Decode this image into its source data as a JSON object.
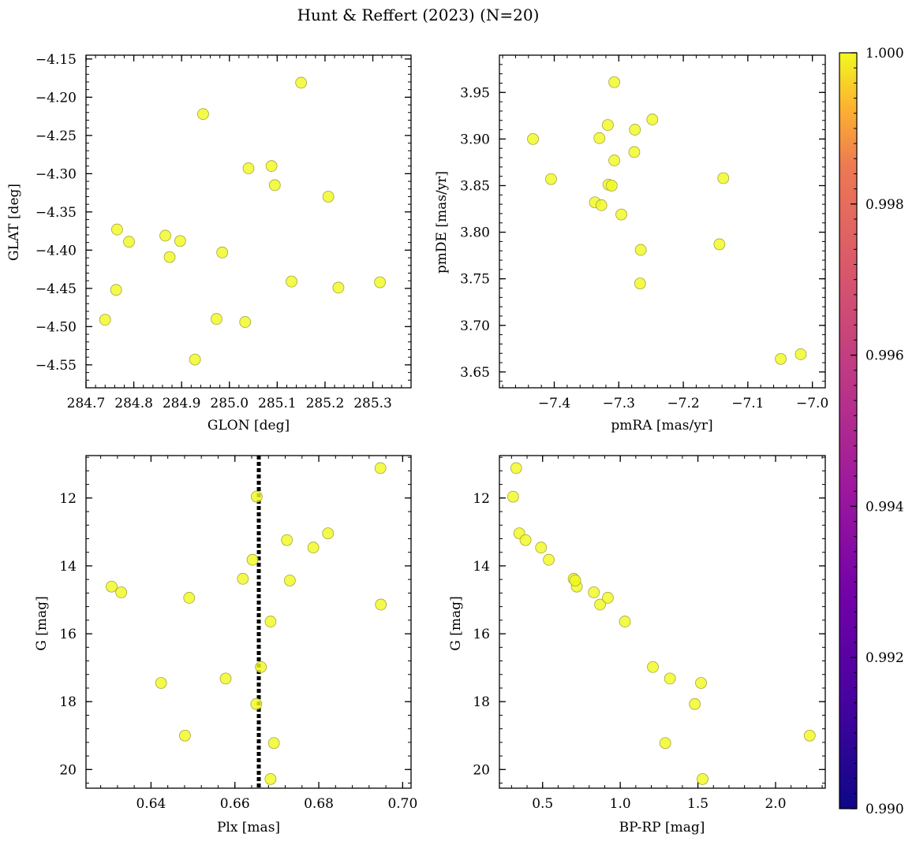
{
  "chart_data": {
    "title": "Hunt & Reffert (2023) (N=20)",
    "colorbar": {
      "ticks": [
        "0.990",
        "0.992",
        "0.994",
        "0.996",
        "0.998",
        "1.000"
      ],
      "range": [
        0.99,
        1.0
      ],
      "colormap": "plasma"
    },
    "point_value": 1.0,
    "point_color": "#f0f921",
    "point_edge": "#a5a53c",
    "refline_color": "#000000",
    "panels": [
      {
        "id": "glon-glat",
        "type": "scatter",
        "xlabel": "GLON [deg]",
        "ylabel": "GLAT [deg]",
        "xlim": [
          284.7,
          285.38
        ],
        "ylim": [
          -4.58,
          -4.145
        ],
        "xticks": [
          284.7,
          284.8,
          284.9,
          285.0,
          285.1,
          285.2,
          285.3
        ],
        "xticklabels": [
          "284.7",
          "284.8",
          "284.9",
          "285.0",
          "285.1",
          "285.2",
          "285.3"
        ],
        "yticks": [
          -4.15,
          -4.2,
          -4.25,
          -4.3,
          -4.35,
          -4.4,
          -4.45,
          -4.5,
          -4.55
        ],
        "yticklabels": [
          "−4.15",
          "−4.20",
          "−4.25",
          "−4.30",
          "−4.35",
          "−4.40",
          "−4.45",
          "−4.50",
          "−4.55"
        ],
        "x": [
          285.15,
          284.945,
          285.04,
          285.088,
          285.095,
          285.207,
          284.765,
          284.79,
          284.866,
          284.897,
          284.875,
          284.985,
          284.763,
          285.13,
          285.228,
          285.315,
          284.74,
          284.973,
          285.033,
          284.928
        ],
        "y": [
          -4.181,
          -4.222,
          -4.293,
          -4.29,
          -4.315,
          -4.33,
          -4.373,
          -4.389,
          -4.381,
          -4.388,
          -4.409,
          -4.403,
          -4.452,
          -4.441,
          -4.449,
          -4.442,
          -4.491,
          -4.49,
          -4.494,
          -4.543
        ]
      },
      {
        "id": "pmra-pmde",
        "type": "scatter",
        "xlabel": "pmRA [mas/yr]",
        "ylabel": "pmDE [mas/yr]",
        "xlim": [
          -7.485,
          -6.98
        ],
        "ylim": [
          3.633,
          3.99
        ],
        "xticks": [
          -7.4,
          -7.3,
          -7.2,
          -7.1,
          -7.0
        ],
        "xticklabels": [
          "−7.4",
          "−7.3",
          "−7.2",
          "−7.1",
          "−7.0"
        ],
        "yticks": [
          3.65,
          3.7,
          3.75,
          3.8,
          3.85,
          3.9,
          3.95
        ],
        "yticklabels": [
          "3.65",
          "3.70",
          "3.75",
          "3.80",
          "3.85",
          "3.90",
          "3.95"
        ],
        "x": [
          -7.307,
          -7.433,
          -7.405,
          -7.33,
          -7.317,
          -7.275,
          -7.248,
          -7.307,
          -7.276,
          -7.316,
          -7.311,
          -7.337,
          -7.327,
          -7.296,
          -7.138,
          -7.266,
          -7.144,
          -7.267,
          -7.049,
          -7.018
        ],
        "y": [
          3.961,
          3.9,
          3.857,
          3.901,
          3.915,
          3.91,
          3.921,
          3.877,
          3.886,
          3.851,
          3.85,
          3.832,
          3.829,
          3.819,
          3.858,
          3.781,
          3.787,
          3.745,
          3.664,
          3.669
        ]
      },
      {
        "id": "plx-g",
        "type": "scatter",
        "xlabel": "Plx [mas]",
        "ylabel": "G [mag]",
        "xlim": [
          0.6245,
          0.702
        ],
        "ylim": [
          20.55,
          10.75
        ],
        "xticks": [
          0.64,
          0.66,
          0.68,
          0.7
        ],
        "xticklabels": [
          "0.64",
          "0.66",
          "0.68",
          "0.70"
        ],
        "yticks": [
          12,
          14,
          16,
          18,
          20
        ],
        "yticklabels": [
          "12",
          "14",
          "16",
          "18",
          "20"
        ],
        "reference_x": 0.6657,
        "x": [
          0.6947,
          0.6652,
          0.6822,
          0.6724,
          0.6787,
          0.6642,
          0.6619,
          0.6731,
          0.6306,
          0.6329,
          0.6491,
          0.6948,
          0.6685,
          0.6662,
          0.6578,
          0.6424,
          0.6651,
          0.6481,
          0.6693,
          0.6685
        ],
        "y": [
          11.12,
          11.96,
          13.04,
          13.24,
          13.46,
          13.82,
          14.38,
          14.43,
          14.61,
          14.78,
          14.94,
          15.14,
          15.64,
          16.98,
          17.32,
          17.45,
          18.07,
          19.0,
          19.22,
          20.28
        ]
      },
      {
        "id": "bprp-g",
        "type": "scatter",
        "xlabel": "BP-RP [mag]",
        "ylabel": "G [mag]",
        "xlim": [
          0.222,
          2.32
        ],
        "ylim": [
          20.55,
          10.75
        ],
        "xticks": [
          0.5,
          1.0,
          1.5,
          2.0
        ],
        "xticklabels": [
          "0.5",
          "1.0",
          "1.5",
          "2.0"
        ],
        "yticks": [
          12,
          14,
          16,
          18,
          20
        ],
        "yticklabels": [
          "12",
          "14",
          "16",
          "18",
          "20"
        ],
        "x": [
          0.33,
          0.31,
          0.35,
          0.39,
          0.49,
          0.54,
          0.7,
          0.72,
          0.83,
          0.87,
          0.92,
          1.03,
          1.21,
          1.32,
          1.52,
          1.48,
          2.22,
          1.29,
          1.53,
          0.71
        ],
        "y": [
          11.12,
          11.96,
          13.04,
          13.24,
          13.46,
          13.82,
          14.38,
          14.61,
          14.78,
          15.14,
          14.94,
          15.64,
          16.98,
          17.32,
          17.45,
          18.07,
          19.0,
          19.22,
          20.28,
          14.43
        ]
      }
    ]
  }
}
